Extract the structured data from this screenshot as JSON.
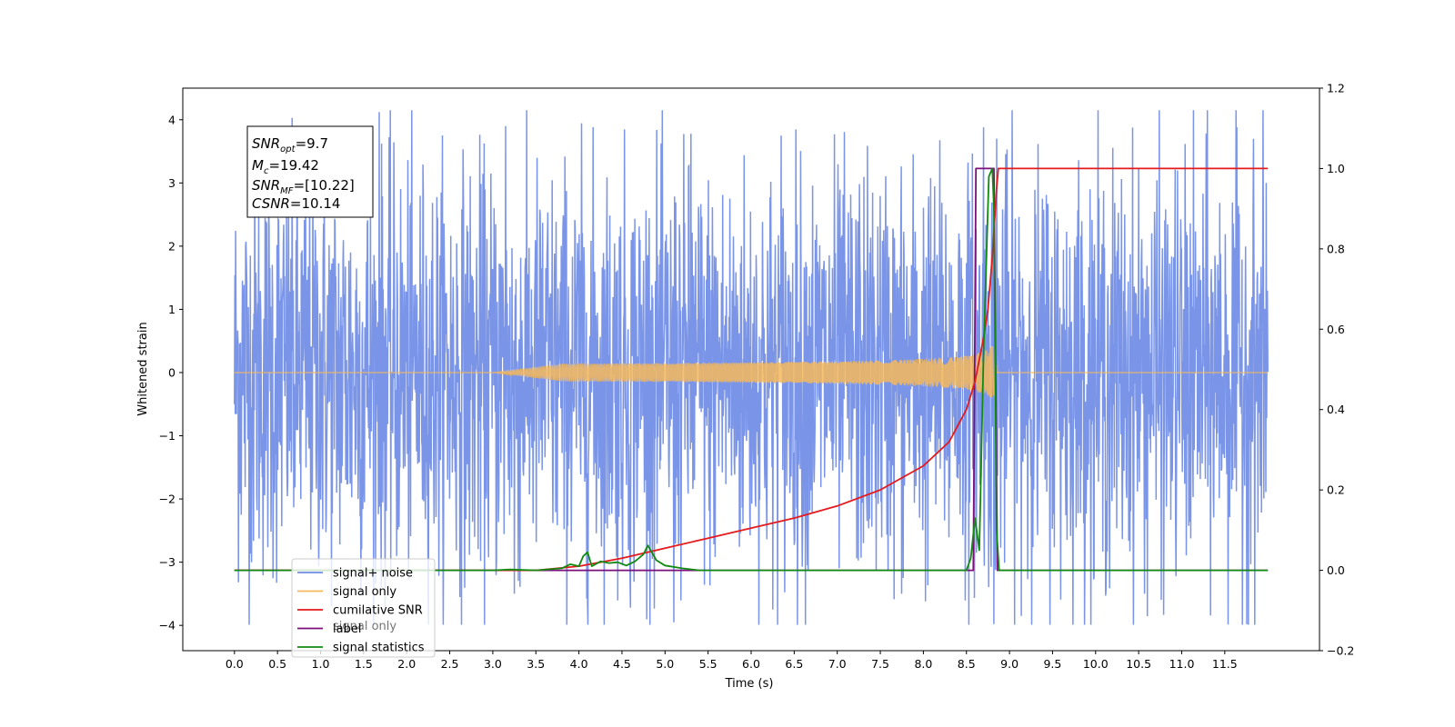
{
  "chart_data": {
    "type": "line",
    "xlabel": "Time (s)",
    "ylabel": "Whitened strain",
    "ylabel_right": "",
    "xlim": [
      -0.6,
      12.6
    ],
    "ylim_left": [
      -4.4,
      4.5
    ],
    "ylim_right": [
      -0.2,
      1.2
    ],
    "x_ticks": [
      "0.0",
      "0.5",
      "1.0",
      "1.5",
      "2.0",
      "2.5",
      "3.0",
      "3.5",
      "4.0",
      "4.5",
      "5.0",
      "5.5",
      "6.0",
      "6.5",
      "7.0",
      "7.5",
      "8.0",
      "8.5",
      "9.0",
      "9.5",
      "10.0",
      "10.5",
      "11.0",
      "11.5"
    ],
    "y_ticks_left": [
      "−4",
      "−3",
      "−2",
      "−1",
      "0",
      "1",
      "2",
      "3",
      "4"
    ],
    "y_ticks_right": [
      "−0.2",
      "0.0",
      "0.2",
      "0.4",
      "0.6",
      "0.8",
      "1.0",
      "1.2"
    ],
    "grid": false,
    "legend_position": "lower-left",
    "annotation": {
      "snr_opt": "9.7",
      "m_c": "19.42",
      "snr_mf": "[10.22]",
      "csnr": "10.14"
    },
    "series": [
      {
        "name": "signal+ noise",
        "color": "#6f8ce6",
        "axis": "left",
        "x_range": [
          0.0,
          12.0
        ],
        "approx_peak_amplitude": 2.6,
        "extreme_spikes": [
          {
            "x": 1.68,
            "y": 4.12
          },
          {
            "x": 3.15,
            "y": 3.9
          },
          {
            "x": 5.3,
            "y": 3.78
          },
          {
            "x": 6.35,
            "y": 3.75
          },
          {
            "x": 8.7,
            "y": 3.88
          },
          {
            "x": 8.85,
            "y": 3.7
          },
          {
            "x": 11.98,
            "y": 3.0
          },
          {
            "x": 5.1,
            "y": -3.95
          },
          {
            "x": 8.82,
            "y": -3.98
          },
          {
            "x": 6.25,
            "y": -3.75
          },
          {
            "x": 4.6,
            "y": -3.72
          },
          {
            "x": 3.25,
            "y": -3.5
          }
        ]
      },
      {
        "name": "signal only",
        "color": "#f5b85c",
        "axis": "left",
        "description": "chirp",
        "x_range": [
          0.0,
          12.0
        ],
        "chirp_start": 3.0,
        "merger_time": 8.85,
        "peak_amplitude": 0.75
      },
      {
        "name": "cumilative SNR",
        "color": "#e41a1c",
        "axis": "right",
        "x": [
          0.0,
          3.5,
          4.0,
          4.5,
          5.0,
          5.5,
          6.0,
          6.5,
          7.0,
          7.5,
          8.0,
          8.3,
          8.5,
          8.6,
          8.7,
          8.75,
          8.8,
          8.85,
          8.87,
          9.0,
          12.0
        ],
        "y": [
          0.0,
          0.0,
          0.01,
          0.03,
          0.055,
          0.08,
          0.105,
          0.13,
          0.16,
          0.2,
          0.26,
          0.32,
          0.4,
          0.47,
          0.58,
          0.65,
          0.78,
          0.95,
          1.0,
          1.0,
          1.0
        ]
      },
      {
        "name": "label",
        "color": "#7b0f7b",
        "axis": "right",
        "x": [
          0.0,
          8.58,
          8.61,
          8.82,
          8.86,
          12.0
        ],
        "y": [
          0.0,
          0.0,
          1.0,
          1.0,
          0.0,
          0.0
        ]
      },
      {
        "name": "signal statistics",
        "color": "#128a12",
        "axis": "right",
        "x": [
          0.0,
          3.0,
          3.2,
          3.5,
          3.8,
          3.9,
          4.0,
          4.05,
          4.1,
          4.15,
          4.25,
          4.35,
          4.45,
          4.55,
          4.65,
          4.75,
          4.8,
          4.9,
          5.0,
          5.2,
          5.4,
          8.5,
          8.55,
          8.6,
          8.65,
          8.7,
          8.76,
          8.8,
          8.82,
          8.85,
          8.88,
          12.0
        ],
        "y": [
          0.0,
          0.0,
          0.002,
          0.0,
          0.005,
          0.015,
          0.01,
          0.035,
          0.045,
          0.01,
          0.022,
          0.018,
          0.02,
          0.012,
          0.022,
          0.04,
          0.062,
          0.025,
          0.012,
          0.005,
          0.0,
          0.0,
          0.03,
          0.13,
          0.05,
          0.55,
          0.98,
          1.0,
          0.9,
          0.1,
          0.0,
          0.0
        ]
      }
    ],
    "legend_labels": [
      "signal+ noise",
      "signal only",
      "cumilative SNR",
      "label",
      "signal statistics"
    ],
    "legend_ghost_text": [
      "signal only"
    ]
  }
}
